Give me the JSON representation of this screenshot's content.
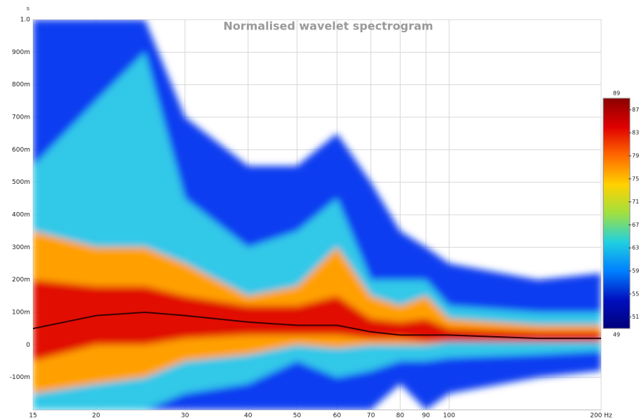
{
  "chart_data": {
    "type": "spectrogram",
    "title": "Normalised wavelet spectrogram",
    "y_unit": "s",
    "x_scale": "log",
    "grid": true,
    "x": [
      15,
      20,
      25,
      30,
      40,
      50,
      60,
      70,
      80,
      90,
      100,
      150,
      200
    ],
    "xlim": [
      15,
      200
    ],
    "xticks": [
      15,
      20,
      30,
      40,
      50,
      60,
      70,
      80,
      90,
      100,
      {
        "value": 200,
        "label": "200 Hz"
      }
    ],
    "ylim": [
      -0.2,
      1.0
    ],
    "yticks": [
      {
        "value": -0.1,
        "label": "-100m"
      },
      0,
      {
        "value": 0.1,
        "label": "100m"
      },
      {
        "value": 0.2,
        "label": "200m"
      },
      {
        "value": 0.3,
        "label": "300m"
      },
      {
        "value": 0.4,
        "label": "400m"
      },
      {
        "value": 0.5,
        "label": "500m"
      },
      {
        "value": 0.6,
        "label": "600m"
      },
      {
        "value": 0.7,
        "label": "700m"
      },
      {
        "value": 0.8,
        "label": "800m"
      },
      {
        "value": 0.9,
        "label": "900m"
      },
      {
        "value": 1.0,
        "label": "1.0"
      }
    ],
    "clim": [
      89,
      49
    ],
    "cticks": [
      87,
      83,
      79,
      75,
      71,
      67,
      63,
      59,
      55,
      51
    ],
    "colormap": [
      "#8b0000",
      "#e00000",
      "#ff6a00",
      "#ffd200",
      "#a0e040",
      "#20d0e0",
      "#0080ff",
      "#0010c0",
      "#00007a"
    ],
    "series": [
      {
        "color": "#0a3cf0",
        "values": [
          1.0,
          1.0,
          1.0,
          0.7,
          0.55,
          0.55,
          0.65,
          0.5,
          0.35,
          0.3,
          0.25,
          0.2,
          0.22
        ],
        "lower": [
          -0.2,
          -0.2,
          -0.2,
          -0.2,
          -0.2,
          -0.2,
          -0.2,
          -0.2,
          -0.12,
          -0.2,
          -0.15,
          -0.1,
          -0.08
        ]
      },
      {
        "color": "#30c8e8",
        "values": [
          0.55,
          0.75,
          0.9,
          0.45,
          0.3,
          0.35,
          0.45,
          0.2,
          0.2,
          0.2,
          0.12,
          0.1,
          0.1
        ],
        "lower": [
          -0.2,
          -0.2,
          -0.2,
          -0.15,
          -0.12,
          -0.05,
          -0.1,
          -0.08,
          -0.05,
          -0.05,
          -0.04,
          -0.03,
          -0.02
        ]
      },
      {
        "color": "#ffa000",
        "values": [
          0.35,
          0.3,
          0.3,
          0.25,
          0.15,
          0.18,
          0.3,
          0.15,
          0.12,
          0.15,
          0.08,
          0.06,
          0.06
        ],
        "lower": [
          -0.15,
          -0.12,
          -0.1,
          -0.05,
          -0.03,
          0,
          -0.01,
          0,
          0,
          0,
          0.01,
          0.01,
          0.01
        ]
      },
      {
        "color": "#e01000",
        "values": [
          0.2,
          0.18,
          0.18,
          0.15,
          0.12,
          0.12,
          0.15,
          0.08,
          0.07,
          0.08,
          0.05,
          0.04,
          0.04
        ],
        "lower": [
          -0.05,
          0,
          0,
          0.02,
          0.03,
          0.03,
          0.03,
          0.02,
          0.02,
          0.01,
          0.01,
          0.01,
          0.01
        ]
      }
    ],
    "ridge": {
      "color": "#3a0000",
      "values": [
        0.05,
        0.09,
        0.1,
        0.09,
        0.07,
        0.06,
        0.06,
        0.04,
        0.03,
        0.03,
        0.03,
        0.02,
        0.02
      ]
    }
  }
}
